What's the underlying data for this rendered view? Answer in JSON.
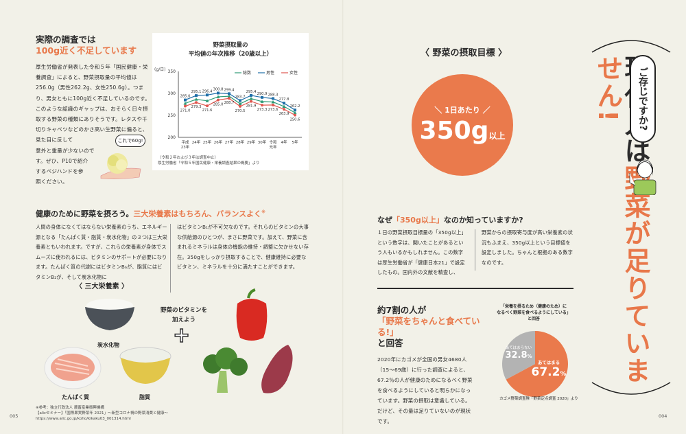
{
  "left_page": {
    "survey": {
      "heading1": "実際の調査では",
      "heading2": "100g近く不足しています",
      "body": "厚生労働省が発表した令和５年「国民健康・栄養調査」によると、野菜摂取量の平均値は256.0g（男性262.2g、女性250.6g）。つまり、男女ともに100g近く不足しているのです。\nこのような認識のギャップは、おそらく日々摂取する野菜の種類にありそうです。レタスや千切りキャベツなどのかさ高い生野菜に偏ると、見た目に反して\n意外と重量が少ないので\nす。ぜひ、P10で紹介\nするベジハンドを参\n照ください。",
      "speech": "これで60g!"
    },
    "nutrition": {
      "heading_black": "健康のために野菜を摂ろう。",
      "heading_orange": "三大栄養素はもちろん、バランスよく",
      "heading_mark": "※",
      "col1": "人間の身体になくてはならない栄養素のうち、エネルギー源となる「たんぱく質・脂質・炭水化物」の３つは三大栄養素ともいわれます。ですが、これらの栄養素が身体でスムーズに使われるには、ビタミンのサポートが必要になります。たんぱく質の代謝にはビタミンB₆が、脂質にはビタミンB₂が、そして炭水化物に",
      "col2": "はビタミンB₁が不可欠なのです。それらのビタミンの大事な供給源のひとつが、まさに野菜です。加えて、野菜に含まれるミネラルは身体の機能の維持・調整に欠かせない存在。350gをしっかり摂取することで、健康維持に必要なビタミン、ミネラルを十分に満たすことができます。",
      "diagram_title": "〈 三大栄養素 〉",
      "carb": "炭水化物",
      "protein": "たんぱく質",
      "fat": "脂質",
      "vitamin_note": "野菜のビタミンを\n加えよう"
    },
    "reference": "※参考：独立行政法人 農畜産業振興機構\n【alicセミナー】「国際果実野菜年 2021」～新型コロナ禍の野菜消費と健康～\nhttps://www.alic.go.jp/koho/kikaku03_001314.html",
    "page_number": "005"
  },
  "chart_data": {
    "type": "line",
    "title": "野菜摂取量の\n平均値の年次推移（20歳以上）",
    "ylabel": "(g/日)",
    "ylim": [
      200,
      350
    ],
    "yticks": [
      200,
      250,
      300,
      350
    ],
    "grid": false,
    "legend": "top-right",
    "categories": [
      "平成\n23年",
      "24年",
      "25年",
      "26年",
      "27年",
      "28年",
      "29年",
      "30年",
      "令和\n元年",
      "4年",
      "5年"
    ],
    "series": [
      {
        "name": "総数",
        "color": "#2e9b76",
        "marker": "triangle",
        "values": [
          277.4,
          286.5,
          283.1,
          292.3,
          293.6,
          276.5,
          288.2,
          281.4,
          280.5,
          270.3,
          256.0
        ]
      },
      {
        "name": "男性",
        "color": "#1f6fa8",
        "marker": "square",
        "values": [
          285.0,
          295.1,
          296.4,
          300.8,
          299.4,
          283.7,
          295.4,
          290.9,
          288.3,
          277.8,
          262.2
        ]
      },
      {
        "name": "女性",
        "color": "#e0574f",
        "marker": "circle",
        "values": [
          271.0,
          279.3,
          271.6,
          285.0,
          288.7,
          270.5,
          281.9,
          273.3,
          273.6,
          263.9,
          250.6
        ]
      }
    ],
    "notes": "（令和２年および３年は調査中止）\n厚生労働省「令和５年国民健康・栄養調査結果の概要」より"
  },
  "right_page": {
    "goal": {
      "title": "〈 野菜の摂取目標 〉",
      "per_day": "＼ 1日あたり ／",
      "amount": "350g",
      "suffix": "以上"
    },
    "why": {
      "heading_pre": "なぜ",
      "heading_orange": "「350g以上」",
      "heading_post": "なのか知っていますか?",
      "col1": "１日の野菜摂取目標量の「350g以上」という数字は、聞いたことがあるという人もいるかもしれません。この数字は厚生労働省が「健康日本21」で設定したもの。国内外の文献を精査し、",
      "col2": "野菜からの摂取寄与度が高い栄養素の状況もふまえ、350g以上という目標値を設定しました。ちゃんと根拠のある数字なのです。"
    },
    "survey": {
      "heading1": "約7割の人が",
      "heading2": "「野菜をちゃんと食べている!」",
      "heading3": "と回答",
      "body": "2020年にカゴメが全国の男女4680人（15～69歳）に行った調査によると、67.2％の人が健康のためになるべく野菜を食べるようにしていると明らかになっています。野菜の摂取は意識している。だけど、その量は足りていないのが現状です。",
      "pie_title": "「栄養を摂るため（健康のため）に\nなるべく野菜を食べるようにしている」\nと回答",
      "pie": [
        {
          "label": "あてはまる",
          "value": 67.2,
          "display": "67.2",
          "color": "#ea7a4c"
        },
        {
          "label": "あてはまらない",
          "value": 32.8,
          "display": "32.8",
          "color": "#b3b3b3"
        }
      ],
      "pct": "%",
      "source": "カゴメ野菜調査隊「野菜定点調査 2020」より"
    },
    "headline": {
      "black": "現代人は",
      "orange": "野菜が足りていません!",
      "bubble": "ご存じですか?"
    },
    "page_number": "004"
  }
}
